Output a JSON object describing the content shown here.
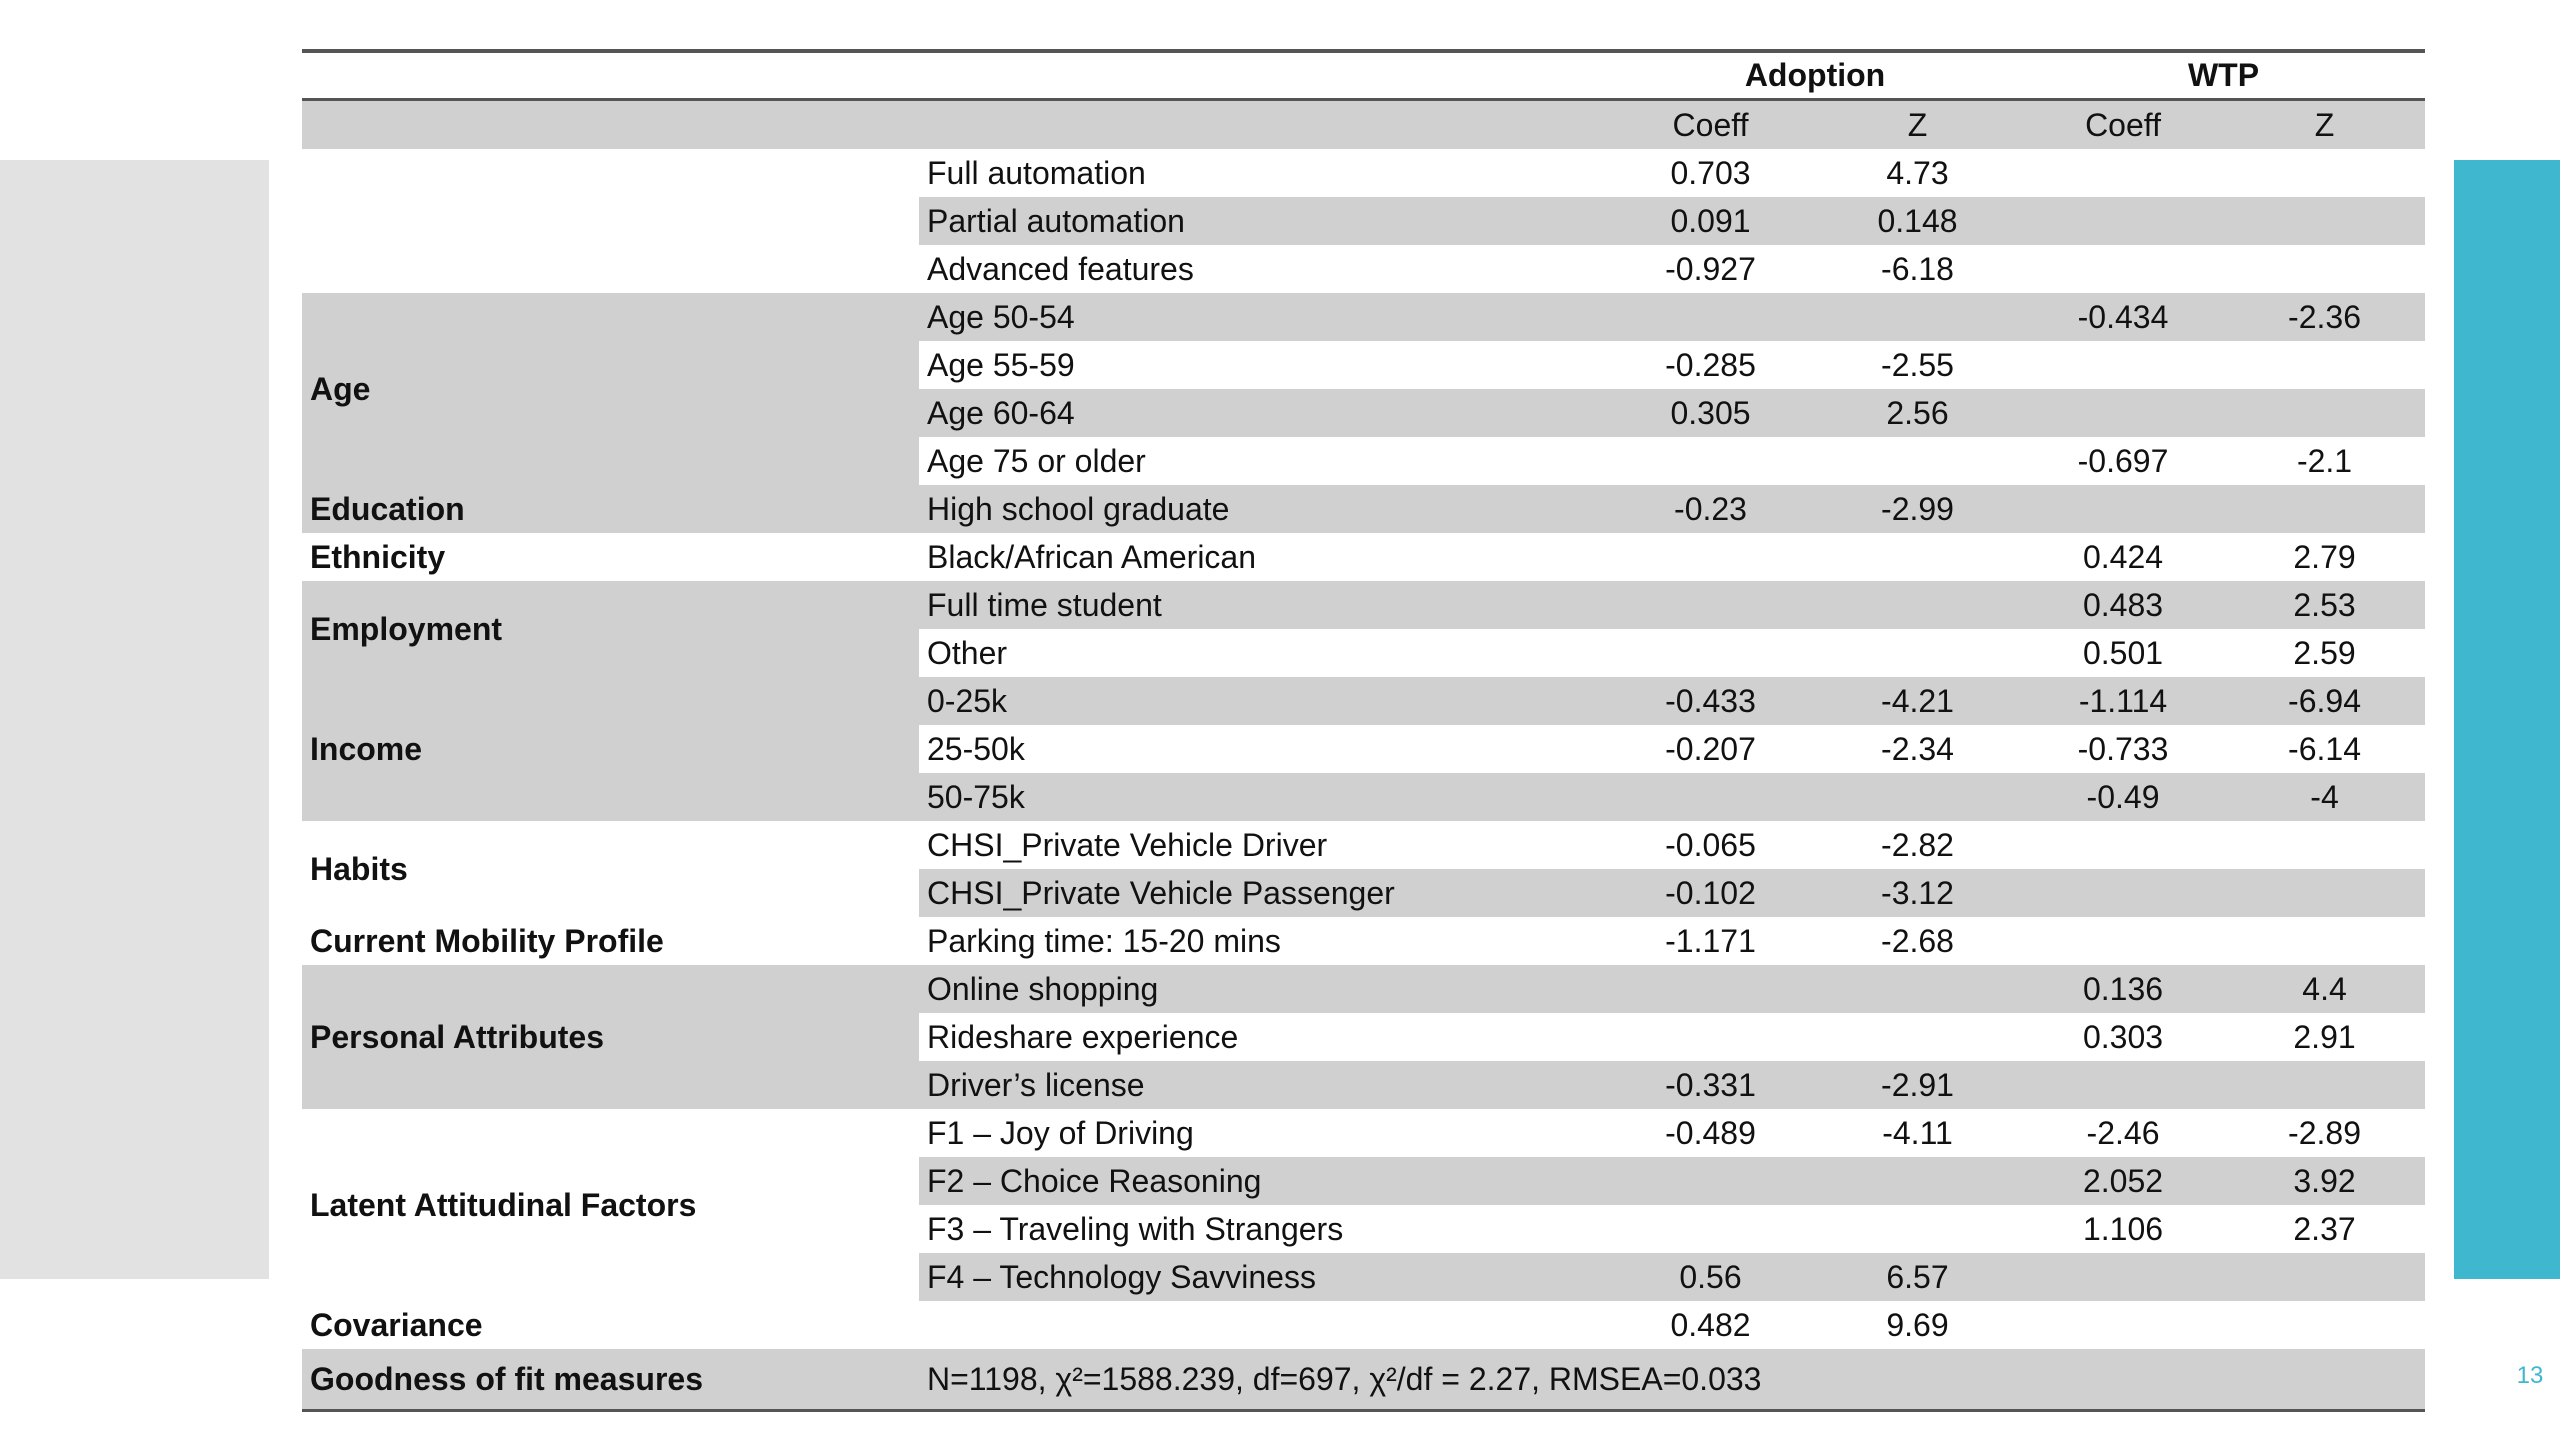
{
  "table": {
    "header": {
      "groups": [
        "Adoption",
        "WTP"
      ],
      "columns": [
        "Coeff",
        "Z",
        "Coeff",
        "Z"
      ]
    },
    "groups": [
      {
        "rows": [
          {
            "variable": "Full automation",
            "adoption_coeff": "0.703",
            "adoption_z": "4.73"
          },
          {
            "variable": "Partial automation",
            "adoption_coeff": "0.091",
            "adoption_z": "0.148"
          },
          {
            "variable": "Advanced features",
            "adoption_coeff": "-0.927",
            "adoption_z": "-6.18"
          }
        ]
      },
      {
        "label": "Age",
        "rows": [
          {
            "variable": "Age 50-54",
            "wtp_coeff": "-0.434",
            "wtp_z": "-2.36"
          },
          {
            "variable": "Age 55-59",
            "adoption_coeff": "-0.285",
            "adoption_z": "-2.55"
          },
          {
            "variable": "Age 60-64",
            "adoption_coeff": "0.305",
            "adoption_z": "2.56"
          },
          {
            "variable": "Age 75 or older",
            "wtp_coeff": "-0.697",
            "wtp_z": "-2.1"
          }
        ]
      },
      {
        "label": "Education",
        "rows": [
          {
            "variable": "High school graduate",
            "adoption_coeff": "-0.23",
            "adoption_z": "-2.99"
          }
        ]
      },
      {
        "label": "Ethnicity",
        "rows": [
          {
            "variable": "Black/African American",
            "wtp_coeff": "0.424",
            "wtp_z": "2.79"
          }
        ]
      },
      {
        "label": "Employment",
        "rows": [
          {
            "variable": "Full time student",
            "wtp_coeff": "0.483",
            "wtp_z": "2.53"
          },
          {
            "variable": "Other",
            "wtp_coeff": "0.501",
            "wtp_z": "2.59"
          }
        ]
      },
      {
        "label": "Income",
        "rows": [
          {
            "variable": "0-25k",
            "adoption_coeff": "-0.433",
            "adoption_z": "-4.21",
            "wtp_coeff": "-1.114",
            "wtp_z": "-6.94"
          },
          {
            "variable": "25-50k",
            "adoption_coeff": "-0.207",
            "adoption_z": "-2.34",
            "wtp_coeff": "-0.733",
            "wtp_z": "-6.14"
          },
          {
            "variable": "50-75k",
            "wtp_coeff": "-0.49",
            "wtp_z": "-4"
          }
        ]
      },
      {
        "label": "Habits",
        "rows": [
          {
            "variable": "CHSI_Private Vehicle Driver",
            "adoption_coeff": "-0.065",
            "adoption_z": "-2.82"
          },
          {
            "variable": "CHSI_Private Vehicle Passenger",
            "adoption_coeff": "-0.102",
            "adoption_z": "-3.12"
          }
        ]
      },
      {
        "label": "Current Mobility Profile",
        "rows": [
          {
            "variable": "Parking time: 15-20 mins",
            "adoption_coeff": "-1.171",
            "adoption_z": "-2.68"
          }
        ]
      },
      {
        "label": "Personal Attributes",
        "rows": [
          {
            "variable": "Online shopping",
            "wtp_coeff": "0.136",
            "wtp_z": "4.4"
          },
          {
            "variable": "Rideshare experience",
            "wtp_coeff": "0.303",
            "wtp_z": "2.91"
          },
          {
            "variable": "Driver’s license",
            "adoption_coeff": "-0.331",
            "adoption_z": "-2.91"
          }
        ]
      },
      {
        "label": "Latent Attitudinal Factors",
        "rows": [
          {
            "variable": "F1 – Joy of Driving",
            "adoption_coeff": "-0.489",
            "adoption_z": "-4.11",
            "wtp_coeff": "-2.46",
            "wtp_z": "-2.89"
          },
          {
            "variable": "F2 – Choice Reasoning",
            "wtp_coeff": "2.052",
            "wtp_z": "3.92"
          },
          {
            "variable": "F3 – Traveling with Strangers",
            "wtp_coeff": "1.106",
            "wtp_z": "2.37"
          },
          {
            "variable": "F4 – Technology Savviness",
            "adoption_coeff": "0.56",
            "adoption_z": "6.57"
          }
        ]
      },
      {
        "label": "Covariance",
        "rows": [
          {
            "adoption_coeff": "0.482",
            "adoption_z": "9.69"
          }
        ]
      }
    ],
    "fit": {
      "label": "Goodness of fit measures",
      "text": "N=1198, χ²=1588.239, df=697, χ²/df = 2.27, RMSEA=0.033"
    }
  },
  "page_number": "13"
}
